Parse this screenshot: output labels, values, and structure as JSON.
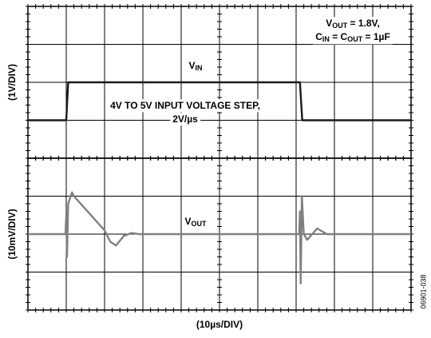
{
  "figure_code": "06901-038",
  "chart_data": [
    {
      "type": "line",
      "ylabel": "(1V/DIV)",
      "xlim": [
        0,
        100
      ],
      "xticks": [
        0,
        10,
        20,
        30,
        40,
        50,
        60,
        70,
        80,
        90,
        100
      ],
      "ylim": [
        3,
        7
      ],
      "yticks": [
        3,
        4,
        5,
        6,
        7
      ],
      "grid": true,
      "series": [
        {
          "color": "#1a1a1a",
          "x": [
            0,
            10,
            10.5,
            71,
            71.6,
            100
          ],
          "values": [
            4,
            4,
            5,
            5,
            4,
            4
          ]
        }
      ],
      "annotations": [
        {
          "lines": [
            [
              {
                "text": "V"
              },
              {
                "text": "IN",
                "sub": true
              }
            ]
          ]
        },
        {
          "lines": [
            [
              {
                "text": "V"
              },
              {
                "text": "OUT",
                "sub": true
              },
              {
                "text": " = 1.8V,"
              }
            ],
            [
              {
                "text": "C"
              },
              {
                "text": "IN",
                "sub": true
              },
              {
                "text": " = C"
              },
              {
                "text": "OUT",
                "sub": true
              },
              {
                "text": " = 1µF"
              }
            ]
          ]
        },
        {
          "lines": [
            [
              {
                "text": "4V TO 5V INPUT VOLTAGE STEP,"
              }
            ],
            [
              {
                "text": "2V/µs"
              }
            ]
          ]
        }
      ]
    },
    {
      "type": "line",
      "ylabel": "(10mV/DIV)",
      "xlabel": "(10µs/DIV)",
      "xlim": [
        0,
        100
      ],
      "xticks": [
        0,
        10,
        20,
        30,
        40,
        50,
        60,
        70,
        80,
        90,
        100
      ],
      "ylim": [
        1.78,
        1.82
      ],
      "yticks": [
        1.78,
        1.79,
        1.8,
        1.81,
        1.82
      ],
      "grid": true,
      "series": [
        {
          "color": "#808080",
          "x": [
            0,
            9.8,
            10,
            10.2,
            10.5,
            11.5,
            12,
            20,
            21.5,
            23,
            25,
            27,
            29,
            70.8,
            71,
            71.2,
            71.5,
            72,
            72.9,
            75.5,
            78,
            100
          ],
          "values": [
            1.8,
            1.8,
            1.805,
            1.794,
            1.808,
            1.811,
            1.81,
            1.801,
            1.798,
            1.797,
            1.7995,
            1.8003,
            1.8,
            1.8,
            1.806,
            1.787,
            1.81,
            1.8,
            1.7985,
            1.8015,
            1.8,
            1.8
          ]
        }
      ],
      "annotations": [
        {
          "lines": [
            [
              {
                "text": "V"
              },
              {
                "text": "OUT",
                "sub": true
              }
            ]
          ]
        }
      ]
    }
  ]
}
